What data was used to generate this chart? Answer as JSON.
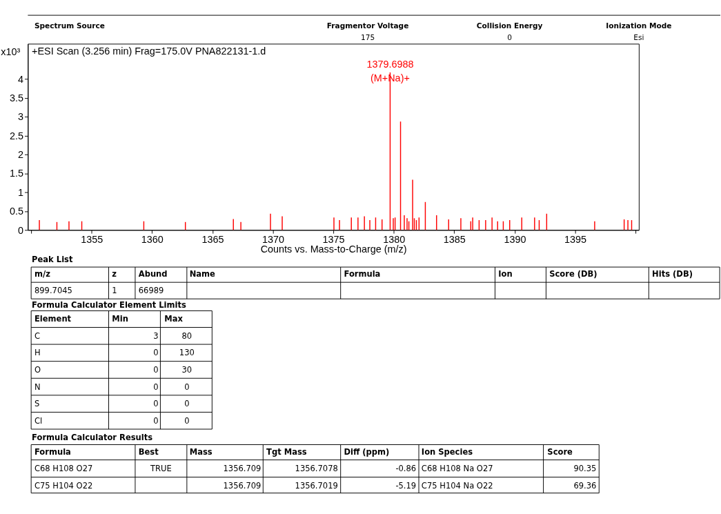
{
  "chart_data": {
    "type": "bar",
    "xlabel": "Counts vs. Mass-to-Charge (m/z)",
    "ylabel": "x10³",
    "xlim": [
      1350,
      1400
    ],
    "ylim": [
      0,
      4.93
    ],
    "xticks": [
      {
        "value": 1350,
        "label": null
      },
      1355,
      1360,
      1365,
      1370,
      1375,
      1380,
      1385,
      1390,
      1395,
      {
        "value": 1400,
        "label": null
      }
    ],
    "yticks": [
      0,
      0.5,
      1,
      1.5,
      2,
      2.5,
      3,
      3.5,
      4
    ],
    "x": [
      1350.68,
      1352.13,
      1353.13,
      1354.19,
      1359.32,
      1362.76,
      1366.73,
      1367.35,
      1369.8,
      1370.77,
      1375.05,
      1375.51,
      1376.49,
      1377.04,
      1377.57,
      1378.02,
      1378.5,
      1379.03,
      1379.6988,
      1379.96,
      1380.11,
      1380.56,
      1380.87,
      1381.1,
      1381.25,
      1381.56,
      1381.7,
      1381.87,
      1382.09,
      1382.61,
      1383.54,
      1384.54,
      1385.55,
      1386.37,
      1386.53,
      1387.06,
      1387.6,
      1388.13,
      1388.59,
      1389.06,
      1389.59,
      1390.59,
      1391.65,
      1392.03,
      1392.65,
      1396.62,
      1399.06,
      1399.37,
      1399.68
    ],
    "series": [
      {
        "color": "#ff0000",
        "values": [
          0.26,
          0.21,
          0.23,
          0.23,
          0.23,
          0.21,
          0.29,
          0.21,
          0.43,
          0.36,
          0.33,
          0.26,
          0.33,
          0.33,
          0.36,
          0.26,
          0.33,
          0.28,
          4.17,
          0.31,
          0.33,
          2.87,
          0.39,
          0.31,
          0.23,
          1.33,
          0.31,
          0.26,
          0.33,
          0.74,
          0.39,
          0.28,
          0.31,
          0.23,
          0.33,
          0.26,
          0.26,
          0.33,
          0.23,
          0.23,
          0.26,
          0.33,
          0.33,
          0.26,
          0.43,
          0.23,
          0.28,
          0.26,
          0.26
        ]
      }
    ],
    "annotations": [
      "Spectrum Source",
      "Fragmentor Voltage",
      "175",
      "Collision Energy",
      "0",
      "Ionization Mode",
      "Esi",
      "+ESI Scan (3.256 min) Frag=175.0V PNA822131-1.d",
      {
        "text": "1379.6988",
        "x": 1379.6988,
        "y": 4.17
      },
      {
        "text": "(M+Na)+",
        "x": 1379.6988,
        "y": 4.17
      },
      "Peak List",
      "m/z",
      "z",
      "Abund",
      "Name",
      "Formula",
      "Ion",
      "Score (DB)",
      "Hits (DB)",
      "899.7045",
      "1",
      "66989",
      "Formula Calculator Element Limits",
      "Element",
      "Min",
      "Max",
      "C",
      "3",
      "80",
      "H",
      "0",
      "130",
      "O",
      "0",
      "30",
      "N",
      "0",
      "0",
      "S",
      "0",
      "0",
      "Cl",
      "0",
      "0",
      "Formula Calculator Results",
      "Formula",
      "Best",
      "Mass",
      "Tgt Mass",
      "Diff (ppm)",
      "Ion Species",
      "Score",
      "C68 H108 O27",
      "TRUE",
      "1356.709",
      "1356.7078",
      "-0.86",
      "C68 H108 Na O27",
      "90.35",
      "C75 H104 O22",
      "1356.709",
      "1356.7019",
      "-5.19",
      "C75 H104 Na O22",
      "69.36"
    ]
  }
}
